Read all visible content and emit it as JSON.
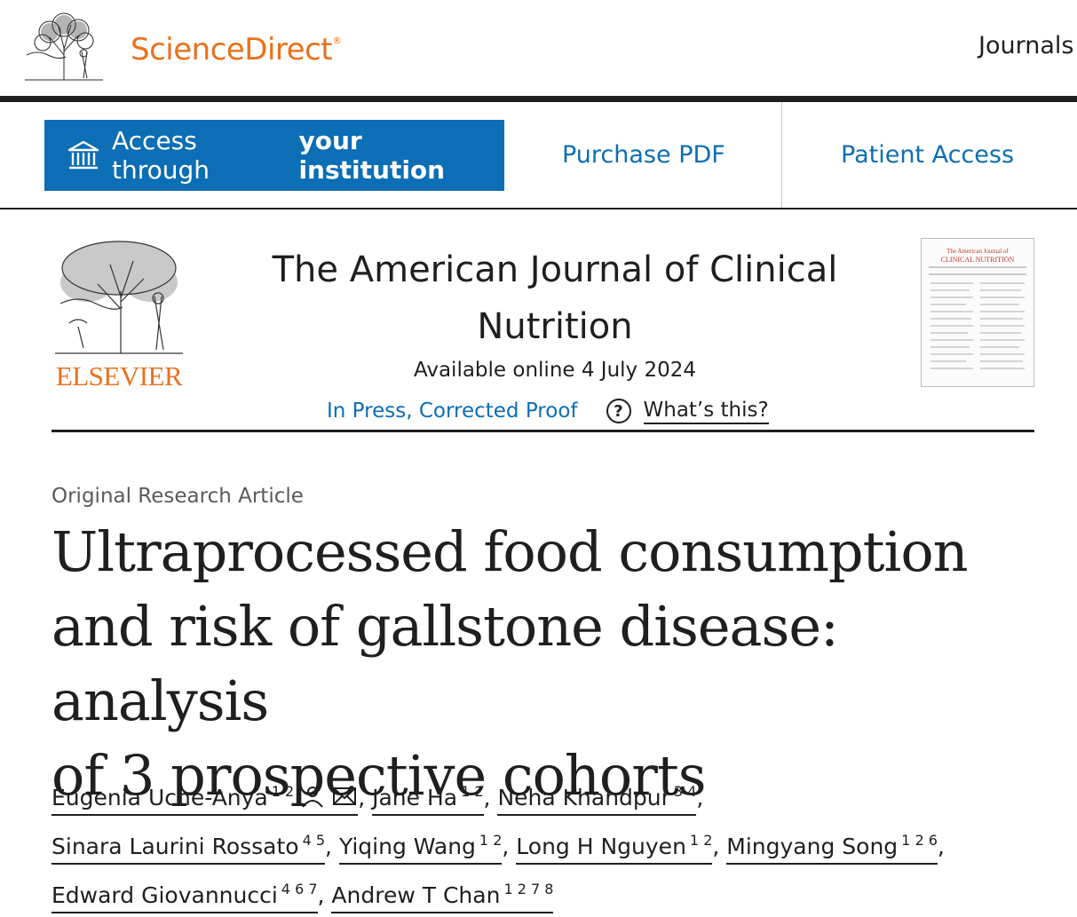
{
  "header": {
    "brand": "ScienceDirect",
    "brand_mark": "®",
    "nav_journals": "Journals"
  },
  "access": {
    "button_prefix": "Access through",
    "button_bold": "your institution",
    "purchase_pdf": "Purchase PDF",
    "patient_access": "Patient Access"
  },
  "journal": {
    "publisher_logo_text": "ELSEVIER",
    "title_line1": "The American Journal of Clinical",
    "title_line2": "Nutrition",
    "available_online": "Available online 4 July 2024",
    "status": "In Press, Corrected Proof",
    "help_glyph": "?",
    "whats_this": "What’s this?",
    "cover_title_1": "The American Journal of",
    "cover_title_2": "CLINICAL NUTRITION"
  },
  "article": {
    "type": "Original Research Article",
    "title_line1": "Ultraprocessed food consumption",
    "title_line2": "and risk of gallstone disease: analysis",
    "title_line3": "of 3 prospective cohorts"
  },
  "authors": [
    {
      "name": "Eugenia Uche-Anya",
      "affil": "1 2"
    },
    {
      "name": "Jane Ha",
      "affil": "1 2"
    },
    {
      "name": "Neha Khandpur",
      "affil": "3 4"
    },
    {
      "name": "Sinara Laurini Rossato",
      "affil": "4 5"
    },
    {
      "name": "Yiqing Wang",
      "affil": "1 2"
    },
    {
      "name": "Long H Nguyen",
      "affil": "1 2"
    },
    {
      "name": "Mingyang Song",
      "affil": "1 2 6"
    },
    {
      "name": "Edward Giovannucci",
      "affil": "4 6 7"
    },
    {
      "name": "Andrew T Chan",
      "affil": "1 2 7 8"
    }
  ],
  "icons": {
    "institution": "institution-icon",
    "person": "person-icon",
    "email": "envelope-icon"
  },
  "colors": {
    "brand_orange": "#e9711c",
    "link_blue": "#0c6eb4",
    "text_dark": "#1f1f1f"
  }
}
